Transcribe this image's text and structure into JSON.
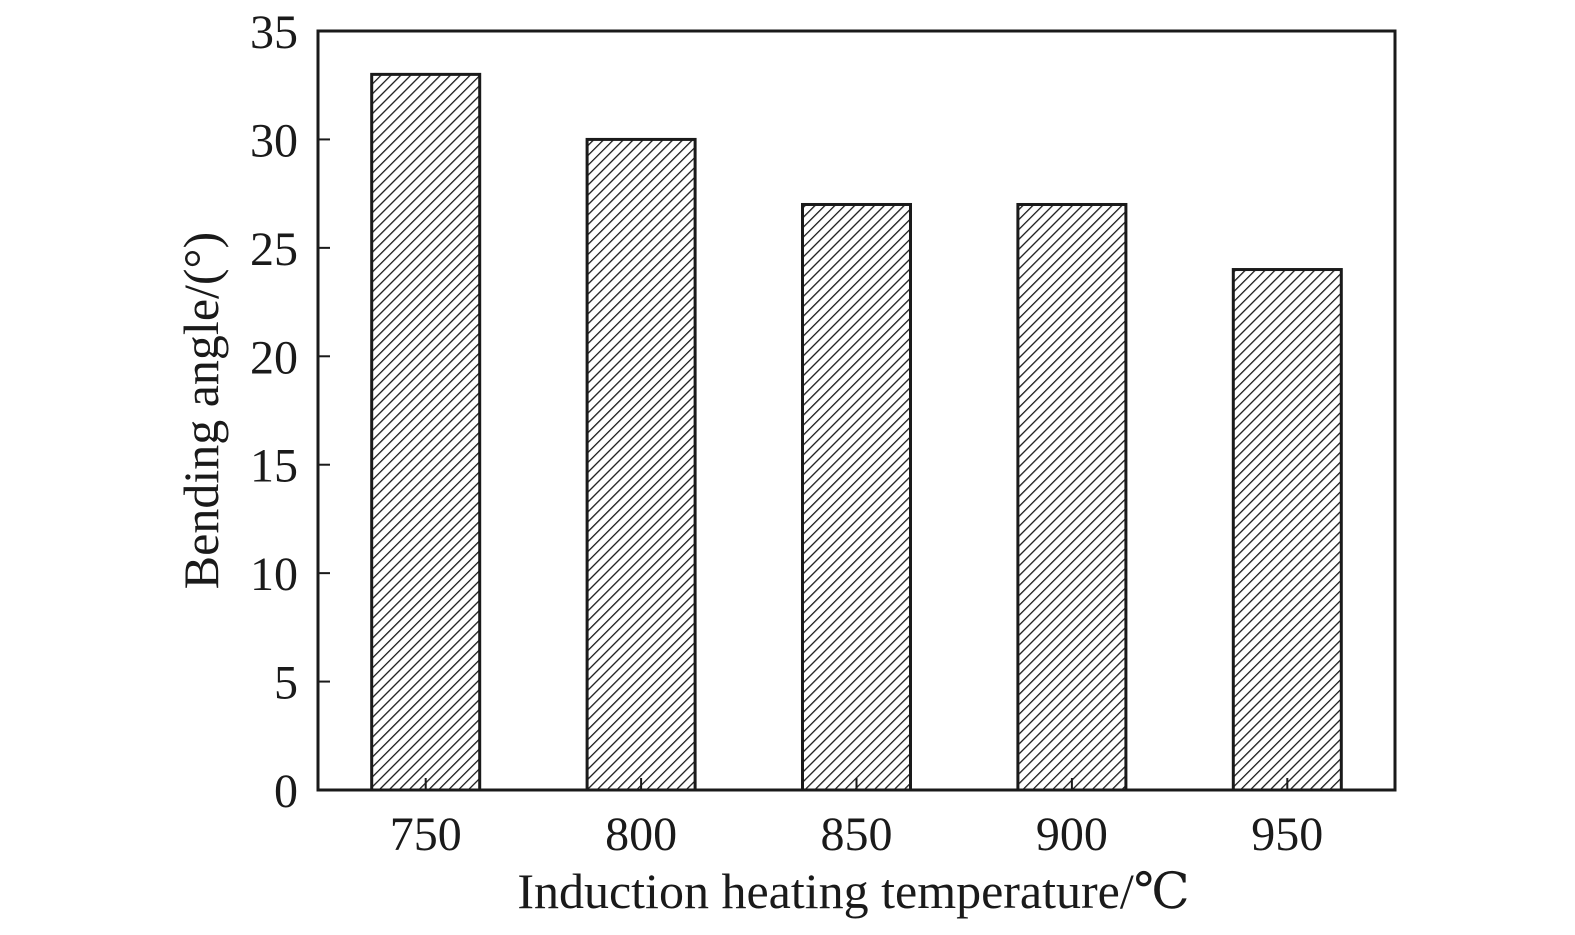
{
  "chart_data": {
    "type": "bar",
    "categories": [
      "750",
      "800",
      "850",
      "900",
      "950"
    ],
    "values": [
      33,
      30,
      27,
      27,
      24
    ],
    "xlabel": "Induction heating temperature/℃",
    "ylabel": "Bending angle/(°)",
    "ylim": [
      0,
      35
    ],
    "yticks": [
      "0",
      "5",
      "10",
      "15",
      "20",
      "25",
      "30",
      "35"
    ],
    "grid": false,
    "bar_fill": "hatched",
    "colors": {
      "bar_stroke": "#1a1a1a",
      "hatch": "#1a1a1a",
      "axis": "#1a1a1a",
      "background": "#ffffff"
    }
  }
}
